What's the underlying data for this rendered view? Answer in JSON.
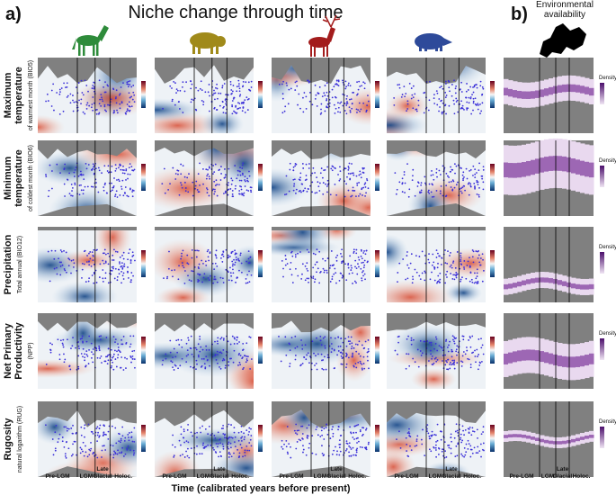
{
  "panel_a": {
    "label": "a)",
    "title": "Niche change through time"
  },
  "panel_b": {
    "label": "b)",
    "title": [
      "Environmental",
      "availability"
    ],
    "legend_title": "Density"
  },
  "rows": [
    {
      "title": [
        "Maximum",
        "temperature"
      ],
      "subtitle": "of warmest month (BIO5)"
    },
    {
      "title": [
        "Minimum",
        "temperature"
      ],
      "subtitle": "of coldest month (BIO6)"
    },
    {
      "title": [
        "Precipitation"
      ],
      "subtitle": "Total annual (BIO12)"
    },
    {
      "title": [
        "Net Primary",
        "Productivity"
      ],
      "subtitle": "(NPP)"
    },
    {
      "title": [
        "Rugosity"
      ],
      "subtitle": "natural logarithm (RUG)"
    }
  ],
  "periods": [
    "Pre-LGM",
    "LGM",
    [
      "Late",
      "Glacial"
    ],
    "Holoc."
  ],
  "x_axis_label": "Time (calibrated years before present)"
}
